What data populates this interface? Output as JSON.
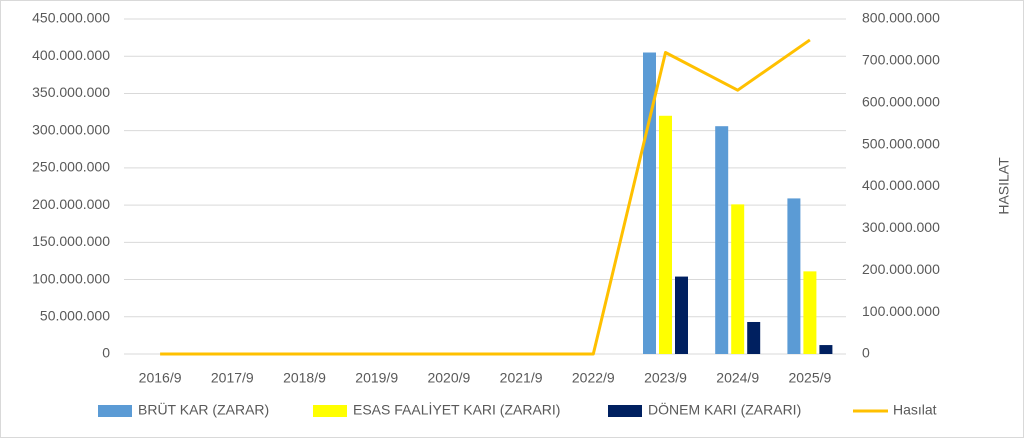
{
  "chart_data": {
    "type": "bar",
    "categories": [
      "2016/9",
      "2017/9",
      "2018/9",
      "2019/9",
      "2020/9",
      "2021/9",
      "2022/9",
      "2023/9",
      "2024/9",
      "2025/9"
    ],
    "series": [
      {
        "name": "BRÜT KAR (ZARAR)",
        "color": "#5b9bd5",
        "type": "bar",
        "values": [
          0,
          0,
          0,
          0,
          0,
          0,
          0,
          405000000,
          306000000,
          209000000
        ]
      },
      {
        "name": "ESAS FAALİYET KARI (ZARARI)",
        "color": "#ffff00",
        "type": "bar",
        "values": [
          0,
          0,
          0,
          0,
          0,
          0,
          0,
          320000000,
          201000000,
          111000000
        ]
      },
      {
        "name": "DÖNEM KARI (ZARARI)",
        "color": "#002060",
        "type": "bar",
        "values": [
          0,
          0,
          0,
          0,
          0,
          0,
          0,
          104000000,
          43000000,
          12000000
        ]
      },
      {
        "name": "Hasılat",
        "color": "#ffc000",
        "type": "line",
        "axis": "y2",
        "values": [
          0,
          0,
          0,
          0,
          0,
          0,
          0,
          720000000,
          630000000,
          750000000
        ]
      }
    ],
    "ylim": [
      0,
      450000000
    ],
    "yticks": [
      0,
      {
        "value": 50000000,
        "label": "50.000.000"
      },
      {
        "value": 100000000,
        "label": "100.000.000"
      },
      {
        "value": 150000000,
        "label": "150.000.000"
      },
      {
        "value": 200000000,
        "label": "200.000.000"
      },
      {
        "value": 250000000,
        "label": "250.000.000"
      },
      {
        "value": 300000000,
        "label": "300.000.000"
      },
      {
        "value": 350000000,
        "label": "350.000.000"
      },
      {
        "value": 400000000,
        "label": "400.000.000"
      },
      {
        "value": 450000000,
        "label": "450.000.000"
      }
    ],
    "y2lim": [
      0,
      800000000
    ],
    "y2ticks": [
      0,
      {
        "value": 100000000,
        "label": "100.000.000"
      },
      {
        "value": 200000000,
        "label": "200.000.000"
      },
      {
        "value": 300000000,
        "label": "300.000.000"
      },
      {
        "value": 400000000,
        "label": "400.000.000"
      },
      {
        "value": 500000000,
        "label": "500.000.000"
      },
      {
        "value": 600000000,
        "label": "600.000.000"
      },
      {
        "value": 700000000,
        "label": "700.000.000"
      },
      {
        "value": 800000000,
        "label": "800.000.000"
      }
    ],
    "y2label": "HASILAT",
    "grid": true
  }
}
